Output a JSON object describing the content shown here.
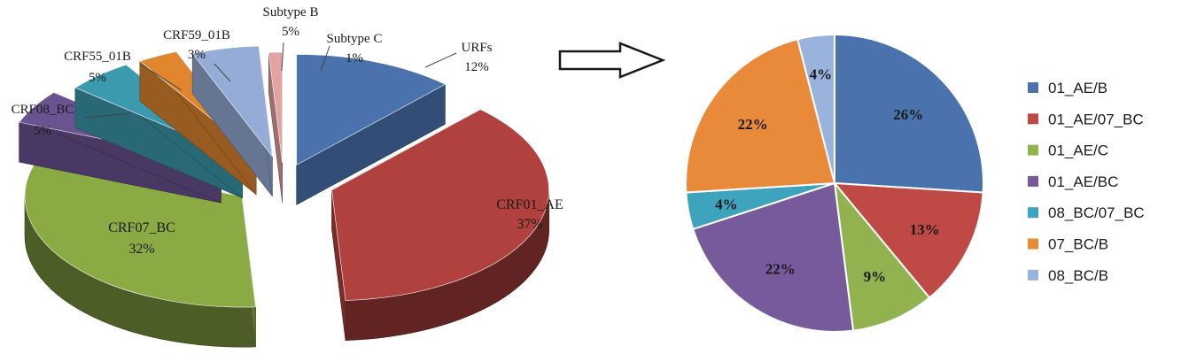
{
  "chart_data": [
    {
      "type": "pie",
      "style": "exploded-3d",
      "title": "",
      "labels_inside": [
        "CRF01_AE",
        "CRF07_BC"
      ],
      "slices": [
        {
          "label": "URFs",
          "value": 12,
          "display": "12%",
          "color": "#4a73ad"
        },
        {
          "label": "CRF01_AE",
          "value": 37,
          "display": "37%",
          "color": "#b0413e"
        },
        {
          "label": "CRF07_BC",
          "value": 32,
          "display": "32%",
          "color": "#8aab43"
        },
        {
          "label": "CRF08_BC",
          "value": 5,
          "display": "5%",
          "color": "#6b5291"
        },
        {
          "label": "CRF55_01B",
          "value": 5,
          "display": "5%",
          "color": "#3c9aae"
        },
        {
          "label": "CRF59_01B",
          "value": 3,
          "display": "3%",
          "color": "#e0862f"
        },
        {
          "label": "Subtype B",
          "value": 5,
          "display": "5%",
          "color": "#94acd6"
        },
        {
          "label": "Subtype C",
          "value": 1,
          "display": "1%",
          "color": "#e3a3a2"
        }
      ]
    },
    {
      "type": "pie",
      "title": "",
      "legend": "right",
      "slices": [
        {
          "label": "01_AE/B",
          "value": 26,
          "display": "26%",
          "color": "#4a73ad"
        },
        {
          "label": "01_AE/07_BC",
          "value": 13,
          "display": "13%",
          "color": "#bf4a45"
        },
        {
          "label": "01_AE/C",
          "value": 9,
          "display": "9%",
          "color": "#92b24f"
        },
        {
          "label": "01_AE/BC",
          "value": 22,
          "display": "22%",
          "color": "#775a9c"
        },
        {
          "label": "08_BC/07_BC",
          "value": 4,
          "display": "4%",
          "color": "#3ea4bd"
        },
        {
          "label": "07_BC/B",
          "value": 22,
          "display": "22%",
          "color": "#e9893a"
        },
        {
          "label": "08_BC/B",
          "value": 4,
          "display": "4%",
          "color": "#9ab3dc"
        }
      ]
    }
  ]
}
